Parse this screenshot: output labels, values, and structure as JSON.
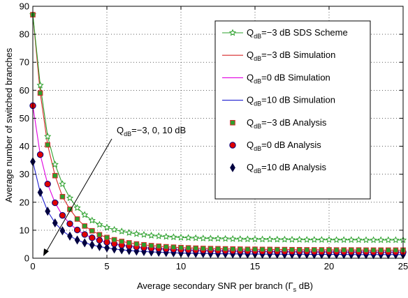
{
  "chart_data": {
    "type": "line",
    "xlabel": "Average secondary SNR per branch (Γ",
    "xlabel_sub": "s",
    "xlabel_tail": " dB)",
    "ylabel": "Average number of switched branches",
    "xlim": [
      0,
      25
    ],
    "ylim": [
      0,
      90
    ],
    "xticks": [
      0,
      5,
      10,
      15,
      20,
      25
    ],
    "yticks": [
      0,
      10,
      20,
      30,
      40,
      50,
      60,
      70,
      80,
      90
    ],
    "grid": true,
    "legend_position": "top-right",
    "x": [
      0,
      0.5,
      1,
      1.5,
      2,
      2.5,
      3,
      3.5,
      4,
      4.5,
      5,
      5.5,
      6,
      6.5,
      7,
      7.5,
      8,
      8.5,
      9,
      9.5,
      10,
      10.5,
      11,
      11.5,
      12,
      12.5,
      13,
      13.5,
      14,
      14.5,
      15,
      15.5,
      16,
      16.5,
      17,
      17.5,
      18,
      18.5,
      19,
      19.5,
      20,
      20.5,
      21,
      21.5,
      22,
      22.5,
      23,
      23.5,
      24,
      24.5,
      25
    ],
    "series": [
      {
        "name": "Q=-3 dB SDS Scheme",
        "label_pre": "Q",
        "label_sub": "dB",
        "label_post": "=−3 dB SDS Scheme",
        "color": "#2ca02c",
        "marker": "star",
        "line": true,
        "values": [
          87,
          61.8,
          43.5,
          33.5,
          26.5,
          21.5,
          18,
          15.5,
          13.5,
          12,
          11,
          10.2,
          9.6,
          9.1,
          8.7,
          8.4,
          8.1,
          7.9,
          7.7,
          7.55,
          7.4,
          7.3,
          7.2,
          7.1,
          7.05,
          7,
          6.95,
          6.9,
          6.85,
          6.8,
          6.8,
          6.75,
          6.75,
          6.7,
          6.7,
          6.65,
          6.65,
          6.6,
          6.6,
          6.6,
          6.6,
          6.55,
          6.55,
          6.55,
          6.55,
          6.5,
          6.5,
          6.5,
          6.5,
          6.5,
          6.5
        ]
      },
      {
        "name": "Q=-3 dB Simulation",
        "label_pre": "Q",
        "label_sub": "dB",
        "label_post": "=−3 dB Simulation",
        "color": "#d62728",
        "marker": "none",
        "line": true,
        "values": [
          87,
          59,
          40.5,
          29.5,
          22,
          17.5,
          14,
          11.5,
          9.8,
          8.4,
          7.4,
          6.6,
          6,
          5.5,
          5.1,
          4.8,
          4.5,
          4.3,
          4.1,
          3.95,
          3.8,
          3.7,
          3.6,
          3.5,
          3.45,
          3.4,
          3.35,
          3.3,
          3.25,
          3.2,
          3.2,
          3.15,
          3.15,
          3.1,
          3.1,
          3.05,
          3.05,
          3,
          3,
          3,
          3,
          2.95,
          2.95,
          2.95,
          2.95,
          2.9,
          2.9,
          2.9,
          2.9,
          2.9,
          2.9
        ]
      },
      {
        "name": "Q=0 dB Simulation",
        "label_pre": "Q",
        "label_sub": "dB",
        "label_post": "=0 dB Simulation",
        "color": "#e000e0",
        "marker": "none",
        "line": true,
        "values": [
          54.5,
          37,
          26.5,
          19.8,
          15.3,
          12.3,
          10.1,
          8.5,
          7.3,
          6.4,
          5.7,
          5.1,
          4.65,
          4.3,
          4,
          3.75,
          3.55,
          3.4,
          3.25,
          3.1,
          3,
          2.9,
          2.8,
          2.75,
          2.7,
          2.65,
          2.6,
          2.55,
          2.5,
          2.45,
          2.45,
          2.4,
          2.4,
          2.35,
          2.35,
          2.3,
          2.3,
          2.3,
          2.25,
          2.25,
          2.25,
          2.2,
          2.2,
          2.2,
          2.2,
          2.2,
          2.15,
          2.15,
          2.15,
          2.15,
          2.15
        ]
      },
      {
        "name": "Q=10 dB Simulation",
        "label_pre": "Q",
        "label_sub": "dB",
        "label_post": "=10 dB Simulation",
        "color": "#1f1fd0",
        "marker": "none",
        "line": true,
        "values": [
          34.5,
          23.5,
          16.8,
          12.6,
          9.8,
          7.9,
          6.5,
          5.5,
          4.75,
          4.15,
          3.7,
          3.3,
          3,
          2.75,
          2.55,
          2.4,
          2.25,
          2.15,
          2.05,
          1.95,
          1.85,
          1.8,
          1.75,
          1.7,
          1.65,
          1.6,
          1.6,
          1.55,
          1.55,
          1.5,
          1.5,
          1.45,
          1.45,
          1.45,
          1.4,
          1.4,
          1.4,
          1.4,
          1.35,
          1.35,
          1.35,
          1.35,
          1.35,
          1.3,
          1.3,
          1.3,
          1.3,
          1.3,
          1.3,
          1.3,
          1.3
        ]
      },
      {
        "name": "Q=-3 dB Analysis",
        "label_pre": "Q",
        "label_sub": "dB",
        "label_post": "=−3 dB Analysis",
        "color": "#2ca02c",
        "edge": "#d62728",
        "marker": "square",
        "line": false,
        "same_as": 1
      },
      {
        "name": "Q=0 dB Analysis",
        "label_pre": "Q",
        "label_sub": "dB",
        "label_post": "=0 dB Analysis",
        "color": "#e00000",
        "edge": "#000080",
        "marker": "circle",
        "line": false,
        "same_as": 2
      },
      {
        "name": "Q=10 dB Analysis",
        "label_pre": "Q",
        "label_sub": "dB",
        "label_post": "=10 dB Analysis",
        "color": "#000040",
        "edge": "#000040",
        "marker": "diamond",
        "line": false,
        "same_as": 3
      }
    ],
    "annotation": {
      "pre": "Q",
      "sub": "dB",
      "post": "=−3, 0, 10 dB"
    }
  }
}
